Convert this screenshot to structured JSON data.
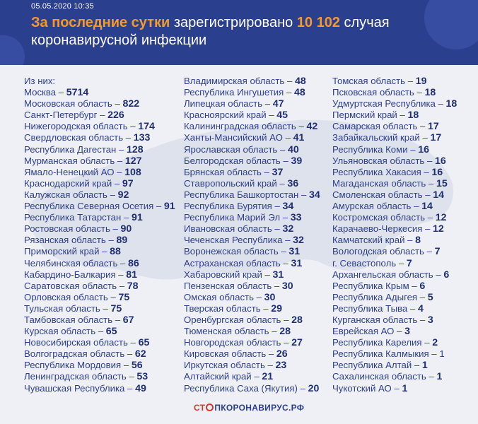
{
  "header": {
    "date": "05.05.2020 10:35",
    "title_part1": "За последние сутки",
    "title_part2": " зарегистрировано ",
    "title_part3": "10 102",
    "title_part4": " случая",
    "title_line2": "коронавирусной инфекции"
  },
  "intro": "Из них:",
  "columns": [
    [
      {
        "region": "Москва",
        "value": "5714"
      },
      {
        "region": "Московская область",
        "value": "822"
      },
      {
        "region": "Санкт-Петербург",
        "value": "226"
      },
      {
        "region": "Нижегородская область",
        "value": "174"
      },
      {
        "region": "Свердловская область",
        "value": "133"
      },
      {
        "region": "Республика Дагестан",
        "value": "128"
      },
      {
        "region": "Мурманская область",
        "value": "127"
      },
      {
        "region": "Ямало-Ненецкий АО",
        "value": "108"
      },
      {
        "region": "Краснодарский край",
        "value": "97"
      },
      {
        "region": "Калужская область",
        "value": "92"
      },
      {
        "region": "Республика Северная Осетия",
        "value": "91"
      },
      {
        "region": "Республика Татарстан",
        "value": "91"
      },
      {
        "region": "Ростовская область",
        "value": "90"
      },
      {
        "region": "Рязанская область",
        "value": "89"
      },
      {
        "region": "Приморский край",
        "value": "88"
      },
      {
        "region": "Челябинская область",
        "value": "86"
      },
      {
        "region": "Кабардино-Балкария",
        "value": "81"
      },
      {
        "region": "Саратовская область",
        "value": "78"
      },
      {
        "region": "Орловская область",
        "value": "75"
      },
      {
        "region": "Тульская область",
        "value": "75"
      },
      {
        "region": "Тамбовская область",
        "value": "67"
      },
      {
        "region": "Курская область",
        "value": "65"
      },
      {
        "region": "Новосибирская область",
        "value": "65"
      },
      {
        "region": "Волгоградская область",
        "value": "62"
      },
      {
        "region": "Республика Мордовия",
        "value": "56"
      },
      {
        "region": "Ленинградская область",
        "value": "53"
      },
      {
        "region": "Чувашская Республика",
        "value": "49"
      }
    ],
    [
      {
        "region": "Владимирская область",
        "value": "48"
      },
      {
        "region": "Республика Ингушетия",
        "value": "48"
      },
      {
        "region": "Липецкая область",
        "value": "47"
      },
      {
        "region": "Красноярский край",
        "value": "45"
      },
      {
        "region": "Калининградская область",
        "value": "42"
      },
      {
        "region": "Ханты-Мансийский АО",
        "value": "41"
      },
      {
        "region": "Ярославская область",
        "value": "40"
      },
      {
        "region": "Белгородская область",
        "value": "39"
      },
      {
        "region": "Брянская область",
        "value": "37"
      },
      {
        "region": "Ставропольский край",
        "value": "36"
      },
      {
        "region": "Республика Башкортостан",
        "value": "34"
      },
      {
        "region": "Республика Бурятия",
        "value": "34"
      },
      {
        "region": "Республика Марий Эл",
        "value": "33"
      },
      {
        "region": "Ивановская область",
        "value": "32"
      },
      {
        "region": "Чеченская Республика",
        "value": "32"
      },
      {
        "region": "Воронежская область",
        "value": "31"
      },
      {
        "region": "Астраханская область",
        "value": "31"
      },
      {
        "region": "Хабаровский край",
        "value": "31"
      },
      {
        "region": "Пензенская область",
        "value": "30"
      },
      {
        "region": "Омская область",
        "value": "30"
      },
      {
        "region": "Тверская область",
        "value": "29"
      },
      {
        "region": "Оренбургская область",
        "value": "28"
      },
      {
        "region": "Тюменская область",
        "value": "28"
      },
      {
        "region": "Новгородская область",
        "value": "27"
      },
      {
        "region": "Кировская область",
        "value": "26"
      },
      {
        "region": "Иркутская область",
        "value": "23"
      },
      {
        "region": "Алтайский край",
        "value": "21"
      },
      {
        "region": "Республика Саха (Якутия)",
        "value": "20"
      }
    ],
    [
      {
        "region": "Томская область",
        "value": "19"
      },
      {
        "region": "Псковская область",
        "value": "18"
      },
      {
        "region": "Удмуртская Республика",
        "value": "18"
      },
      {
        "region": "Пермский край",
        "value": "18"
      },
      {
        "region": "Самарская область",
        "value": "17"
      },
      {
        "region": "Забайкальский край",
        "value": "17"
      },
      {
        "region": "Республика Коми",
        "value": "16"
      },
      {
        "region": "Ульяновская область",
        "value": "16"
      },
      {
        "region": "Республика Хакасия",
        "value": "16"
      },
      {
        "region": "Магаданская область",
        "value": "15"
      },
      {
        "region": "Смоленская область",
        "value": "14"
      },
      {
        "region": "Амурская область",
        "value": "14"
      },
      {
        "region": "Костромская область",
        "value": "12"
      },
      {
        "region": "Карачаево-Черкесия",
        "value": "12"
      },
      {
        "region": "Камчатский край",
        "value": "8"
      },
      {
        "region": "Вологодская область",
        "value": "7"
      },
      {
        "region": "г. Севастополь",
        "value": "7"
      },
      {
        "region": "Архангельская область",
        "value": "6"
      },
      {
        "region": "Республика Крым",
        "value": "6"
      },
      {
        "region": "Республика Адыгея",
        "value": "5"
      },
      {
        "region": "Республика Тыва",
        "value": "4"
      },
      {
        "region": "Курганская область",
        "value": "3"
      },
      {
        "region": "Еврейская АО",
        "value": "3"
      },
      {
        "region": "Республика Карелия",
        "value": "2"
      },
      {
        "region": "Республика Калмыкия",
        "value": "1",
        "small": true
      },
      {
        "region": "Республика Алтай",
        "value": "1"
      },
      {
        "region": "Сахалинская область",
        "value": "1"
      },
      {
        "region": "Чукотский АО",
        "value": "1"
      }
    ]
  ],
  "separator": " – ",
  "footer": {
    "part1": "СТ",
    "part2": "ПКОРОНАВИРУС.РФ"
  },
  "colors": {
    "header_bg": "#2b3f8f",
    "accent": "#f39a2b",
    "text": "#2e3f8c",
    "brand_red": "#e0322f"
  }
}
